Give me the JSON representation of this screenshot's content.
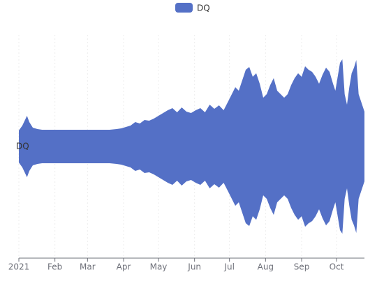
{
  "chart_data": {
    "type": "themeRiver",
    "x": [
      0,
      3,
      5,
      7,
      9,
      12,
      16,
      20,
      25,
      30,
      36,
      42,
      48,
      54,
      60,
      66,
      72,
      78,
      84,
      88,
      92,
      96,
      100,
      104,
      108,
      112,
      116,
      120,
      124,
      128,
      132,
      136,
      140,
      144,
      148,
      152,
      156,
      160,
      164,
      168,
      172,
      176,
      180,
      183,
      186,
      189,
      192,
      195,
      198,
      201,
      204,
      207,
      210,
      213,
      216,
      219,
      222,
      225,
      228,
      231,
      234,
      237,
      240,
      243,
      246,
      249,
      252,
      255,
      258,
      261,
      264,
      267,
      270,
      272,
      274,
      276,
      278,
      280,
      282,
      284,
      286,
      288,
      290,
      292,
      294,
      296,
      297
    ],
    "series": [
      {
        "name": "DQ",
        "color": "#5470c6",
        "values": [
          46,
          60,
          74,
          88,
          70,
          54,
          50,
          48,
          48,
          48,
          48,
          48,
          48,
          48,
          48,
          48,
          48,
          48,
          50,
          52,
          56,
          60,
          70,
          66,
          76,
          74,
          80,
          88,
          96,
          104,
          110,
          98,
          112,
          100,
          96,
          104,
          110,
          98,
          120,
          108,
          118,
          104,
          130,
          150,
          170,
          160,
          190,
          220,
          228,
          200,
          210,
          180,
          140,
          150,
          176,
          196,
          160,
          150,
          140,
          150,
          176,
          196,
          210,
          200,
          230,
          220,
          214,
          200,
          180,
          206,
          226,
          214,
          180,
          160,
          200,
          240,
          250,
          150,
          120,
          170,
          210,
          226,
          248,
          150,
          130,
          110,
          100
        ]
      }
    ],
    "xlim": [
      0,
      297
    ],
    "xticks": [
      {
        "value": 0,
        "label": "2021"
      },
      {
        "value": 31,
        "label": "Feb"
      },
      {
        "value": 59,
        "label": "Mar"
      },
      {
        "value": 90,
        "label": "Apr"
      },
      {
        "value": 120,
        "label": "May"
      },
      {
        "value": 151,
        "label": "Jun"
      },
      {
        "value": 181,
        "label": "Jul"
      },
      {
        "value": 212,
        "label": "Aug"
      },
      {
        "value": 243,
        "label": "Sep"
      },
      {
        "value": 273,
        "label": "Oct"
      }
    ],
    "ylim": [
      0,
      320
    ],
    "grid": true,
    "legend": "top"
  }
}
